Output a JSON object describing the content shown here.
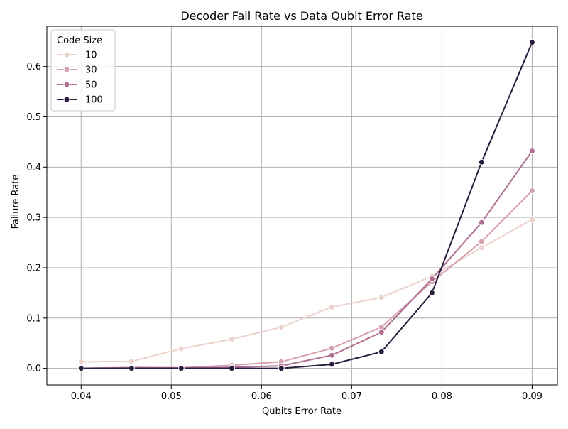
{
  "chart_data": {
    "type": "line",
    "title": "Decoder Fail Rate vs Data Qubit Error Rate",
    "xlabel": "Qubits Error Rate",
    "ylabel": "Failure Rate",
    "xlim": [
      0.0362,
      0.0928
    ],
    "ylim": [
      -0.033,
      0.68
    ],
    "xticks": [
      0.04,
      0.05,
      0.06,
      0.07,
      0.08,
      0.09
    ],
    "xtick_labels": [
      "0.04",
      "0.05",
      "0.06",
      "0.07",
      "0.08",
      "0.09"
    ],
    "yticks": [
      0.0,
      0.1,
      0.2,
      0.3,
      0.4,
      0.5,
      0.6
    ],
    "ytick_labels": [
      "0.0",
      "0.1",
      "0.2",
      "0.3",
      "0.4",
      "0.5",
      "0.6"
    ],
    "grid": true,
    "legend": {
      "title": "Code Size",
      "placement": "top-left"
    },
    "x": [
      0.04,
      0.0456,
      0.0511,
      0.0567,
      0.0622,
      0.0678,
      0.0733,
      0.0789,
      0.0844,
      0.09
    ],
    "series": [
      {
        "name": "10",
        "color": "#ebd3cc",
        "values": [
          0.013,
          0.014,
          0.039,
          0.058,
          0.082,
          0.122,
          0.141,
          0.183,
          0.24,
          0.296
        ]
      },
      {
        "name": "30",
        "color": "#d59fad",
        "values": [
          0.0,
          0.002,
          0.001,
          0.006,
          0.013,
          0.04,
          0.082,
          0.172,
          0.252,
          0.353
        ]
      },
      {
        "name": "50",
        "color": "#b06f92",
        "values": [
          0.0,
          0.001,
          0.001,
          0.002,
          0.005,
          0.026,
          0.072,
          0.178,
          0.29,
          0.432
        ]
      },
      {
        "name": "100",
        "color": "#2b1d3e",
        "values": [
          0.0,
          0.0,
          0.0,
          0.0,
          0.0,
          0.008,
          0.033,
          0.15,
          0.41,
          0.648
        ]
      }
    ]
  }
}
